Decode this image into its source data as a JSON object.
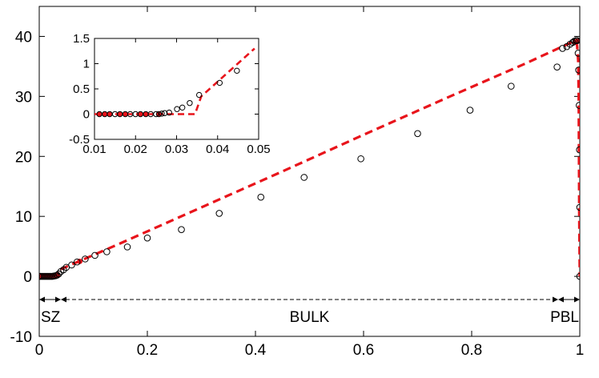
{
  "chart_data": [
    {
      "type": "line",
      "xlim": [
        0,
        1
      ],
      "ylim": [
        -10,
        45
      ],
      "xticks": [
        "0",
        "0.2",
        "0.4",
        "0.6",
        "0.8",
        "1"
      ],
      "yticks": [
        "-10",
        "0",
        "10",
        "20",
        "30",
        "40"
      ],
      "grid": false,
      "legend": "none",
      "series": [
        {
          "style": "dashed",
          "color": "#e8141b",
          "x": [
            0,
            0.033,
            0.04,
            0.15,
            0.3,
            0.45,
            0.6,
            0.75,
            0.9,
            0.965,
            0.985,
            0.992,
            0.995,
            0.997,
            0.998,
            0.9985,
            0.999,
            1.0
          ],
          "y": [
            0,
            0,
            1.2,
            5.5,
            11.5,
            17.5,
            23.6,
            29.6,
            35.5,
            38.2,
            39.0,
            39.2,
            38.5,
            36,
            30,
            20,
            10,
            0
          ]
        },
        {
          "style": "markers",
          "marker": "open-circle",
          "color": "#000000",
          "x": [
            0.0,
            0.003,
            0.006,
            0.009,
            0.012,
            0.015,
            0.018,
            0.021,
            0.024,
            0.027,
            0.03,
            0.033,
            0.036,
            0.04,
            0.045,
            0.05,
            0.06,
            0.07,
            0.085,
            0.103,
            0.125,
            0.163,
            0.2,
            0.263,
            0.333,
            0.41,
            0.49,
            0.595,
            0.7,
            0.797,
            0.873,
            0.958,
            0.968,
            0.976,
            0.982,
            0.987,
            0.99,
            0.993,
            0.995,
            0.997,
            0.998,
            0.999,
            0.9995,
            1.0,
            1.0
          ],
          "y": [
            0,
            0,
            0,
            0,
            0,
            0,
            0,
            0,
            0,
            0.05,
            0.1,
            0.2,
            0.4,
            0.8,
            1.1,
            1.5,
            1.9,
            2.4,
            2.9,
            3.5,
            4.1,
            4.9,
            6.4,
            7.8,
            10.5,
            13.2,
            16.5,
            19.6,
            23.8,
            27.7,
            31.7,
            34.9,
            38.0,
            38.3,
            38.7,
            39.0,
            39.2,
            39.3,
            39.3,
            37.2,
            34.4,
            28.5,
            21.1,
            11.5,
            0
          ]
        },
        {
          "style": "markers",
          "marker": "filled-circle",
          "color": "#e8141b",
          "x": [
            0.002,
            0.006,
            0.01,
            0.014,
            0.018,
            0.022,
            0.026,
            0.03,
            0.034,
            0.075,
            0.992,
            0.996
          ],
          "y": [
            0,
            0,
            0,
            0,
            0,
            0,
            0,
            0.1,
            0.3,
            2.5,
            39.1,
            39.2
          ]
        }
      ],
      "annotations": [
        {
          "text": "SZ",
          "x_from": 0,
          "x_to": 0.04
        },
        {
          "text": "BULK",
          "x_from": 0.04,
          "x_to": 0.96
        },
        {
          "text": "PBL",
          "x_from": 0.96,
          "x_to": 1.0
        }
      ]
    },
    {
      "type": "line",
      "inset": true,
      "xlim": [
        0.01,
        0.05
      ],
      "ylim": [
        -0.5,
        1.5
      ],
      "xticks": [
        "0.01",
        "0.02",
        "0.03",
        "0.04",
        "0.05"
      ],
      "yticks": [
        "-0.5",
        "0",
        "0.5",
        "1",
        "1.5"
      ],
      "grid": false,
      "series": [
        {
          "style": "dashed",
          "color": "#e8141b",
          "x": [
            0.01,
            0.0295,
            0.0345,
            0.036,
            0.049
          ],
          "y": [
            0,
            0,
            0,
            0.35,
            1.3
          ]
        },
        {
          "style": "markers",
          "marker": "open-circle",
          "color": "#000000",
          "x": [
            0.0112,
            0.0125,
            0.0137,
            0.015,
            0.0162,
            0.0175,
            0.0187,
            0.02,
            0.0212,
            0.0225,
            0.0237,
            0.025,
            0.0257,
            0.0264,
            0.0271,
            0.0282,
            0.0301,
            0.0314,
            0.0332,
            0.0355,
            0.0405,
            0.0447
          ],
          "y": [
            0,
            0,
            0,
            0,
            0,
            0,
            0,
            0,
            0,
            0,
            0,
            0,
            0,
            0.01,
            0.02,
            0.03,
            0.1,
            0.13,
            0.22,
            0.38,
            0.62,
            0.86
          ]
        },
        {
          "style": "markers",
          "marker": "filled-circle",
          "color": "#e8141b",
          "x": [
            0.0112,
            0.0125,
            0.0137,
            0.0162,
            0.0175,
            0.0212,
            0.0225,
            0.0257
          ],
          "y": [
            0,
            0,
            0,
            0,
            0,
            0,
            0,
            0
          ]
        }
      ]
    }
  ]
}
